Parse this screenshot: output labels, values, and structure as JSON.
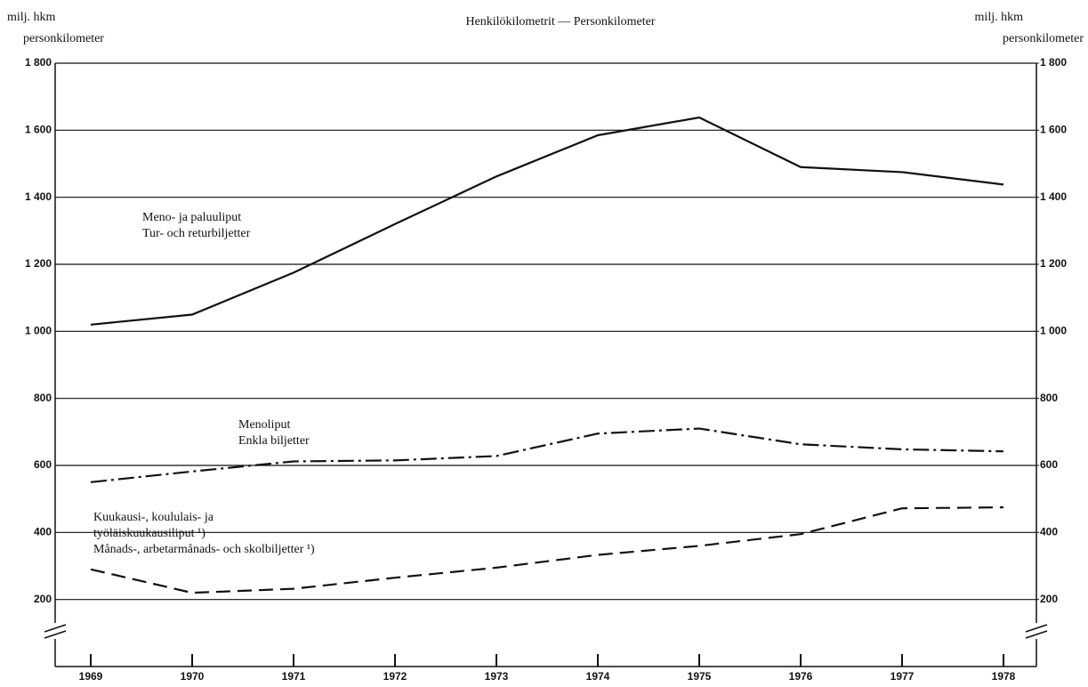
{
  "chart_data": {
    "type": "line",
    "title": "Henkilökilometrit — Personkilometer",
    "y_label": [
      "milj. hkm",
      "personkilometer"
    ],
    "y2_label": [
      "milj. hkm",
      "personkilometer"
    ],
    "categories": [
      "1969",
      "1970",
      "1971",
      "1972",
      "1973",
      "1974",
      "1975",
      "1976",
      "1977",
      "1978"
    ],
    "ylim": [
      0,
      1800
    ],
    "yticks": [
      {
        "value": 200,
        "label": "200"
      },
      {
        "value": 400,
        "label": "400"
      },
      {
        "value": 600,
        "label": "600"
      },
      {
        "value": 800,
        "label": "800"
      },
      {
        "value": 1000,
        "label": "1 000"
      },
      {
        "value": 1200,
        "label": "1 200"
      },
      {
        "value": 1400,
        "label": "1 400"
      },
      {
        "value": 1600,
        "label": "1 600"
      },
      {
        "value": 1800,
        "label": "1 800"
      }
    ],
    "y2lim": [
      0,
      1800
    ],
    "y2ticks": [
      {
        "value": 200,
        "label": "200"
      },
      {
        "value": 400,
        "label": "400"
      },
      {
        "value": 600,
        "label": "600"
      },
      {
        "value": 800,
        "label": "800"
      },
      {
        "value": 1000,
        "label": "1 000"
      },
      {
        "value": 1200,
        "label": "1 200"
      },
      {
        "value": 1400,
        "label": "1 400"
      },
      {
        "value": 1600,
        "label": "1 600"
      },
      {
        "value": 1800,
        "label": "1 800"
      }
    ],
    "grid": true,
    "series": [
      {
        "name": "Meno- ja paluuliput",
        "label_lines": [
          "Meno- ja paluuliput",
          "Tur- och returbiljetter"
        ],
        "color": "#111111",
        "dash": "solid",
        "values": [
          1020,
          1050,
          1175,
          1320,
          1462,
          1585,
          1638,
          1490,
          1475,
          1438
        ]
      },
      {
        "name": "Menoliput",
        "label_lines": [
          "Menoliput",
          "Enkla biljetter"
        ],
        "color": "#111111",
        "dash": "dashdot",
        "values": [
          550,
          582,
          612,
          615,
          628,
          695,
          710,
          663,
          648,
          642
        ]
      },
      {
        "name": "Kuukausi-, koululais- ja työläiskuukausiliput ¹)",
        "label_lines": [
          "Kuukausi-, koululais- ja",
          "työläiskuukausiliput ¹)",
          "Månads-, arbetarmånads- och skolbiljetter ¹)"
        ],
        "color": "#111111",
        "dash": "dashed",
        "values": [
          290,
          220,
          232,
          265,
          295,
          333,
          360,
          395,
          472,
          475
        ]
      }
    ]
  }
}
